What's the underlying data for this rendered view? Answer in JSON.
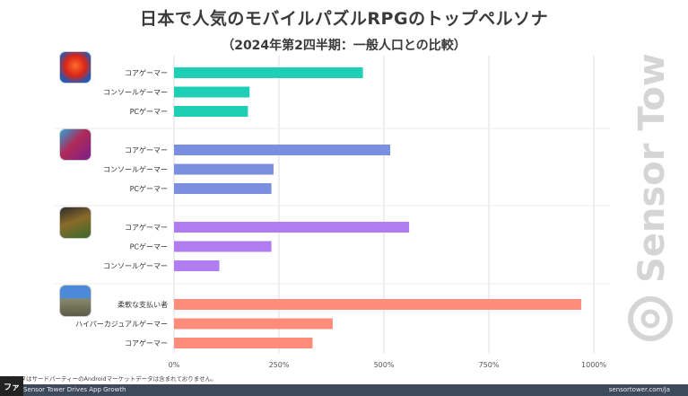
{
  "title": "日本で人気のモバイルパズルRPGのトップペルソナ",
  "subtitle": "（2024年第2四半期：一般人口との比較）",
  "footnote": "※データはサードパーティーのAndroidマーケットデータは含まれておりません。",
  "footer_left": "Sensor Tower Drives App Growth",
  "footer_right": "sensortower.com/ja",
  "watermark": "Sensor Tower",
  "colors": {
    "game1": "#1fcfb5",
    "game2": "#7b8fe0",
    "game3": "#b07cf0",
    "game4": "#ff8c7a",
    "grid": "#dddddd"
  },
  "chart_data": {
    "type": "bar",
    "orientation": "horizontal",
    "xlim": [
      0,
      1000
    ],
    "x_ticks": [
      "0%",
      "250%",
      "500%",
      "750%",
      "1000%"
    ],
    "grid": true,
    "groups": [
      {
        "icon": "game-1-app-icon",
        "color_key": "game1",
        "bars": [
          {
            "label": "コアゲーマー",
            "value": 450
          },
          {
            "label": "コンソールゲーマー",
            "value": 180
          },
          {
            "label": "PCゲーマー",
            "value": 176
          }
        ]
      },
      {
        "icon": "game-2-app-icon",
        "color_key": "game2",
        "bars": [
          {
            "label": "コアゲーマー",
            "value": 515
          },
          {
            "label": "コンソールゲーマー",
            "value": 237
          },
          {
            "label": "PCゲーマー",
            "value": 232
          }
        ]
      },
      {
        "icon": "game-3-app-icon",
        "color_key": "game3",
        "bars": [
          {
            "label": "コアゲーマー",
            "value": 560
          },
          {
            "label": "PCゲーマー",
            "value": 232
          },
          {
            "label": "コンソールゲーマー",
            "value": 108
          }
        ]
      },
      {
        "icon": "game-4-app-icon",
        "color_key": "game4",
        "bars": [
          {
            "label": "柔軟な支払い者",
            "value": 970
          },
          {
            "label": "ハイパーカジュアルゲーマー",
            "value": 378
          },
          {
            "label": "コアゲーマー",
            "value": 330
          }
        ]
      }
    ]
  }
}
